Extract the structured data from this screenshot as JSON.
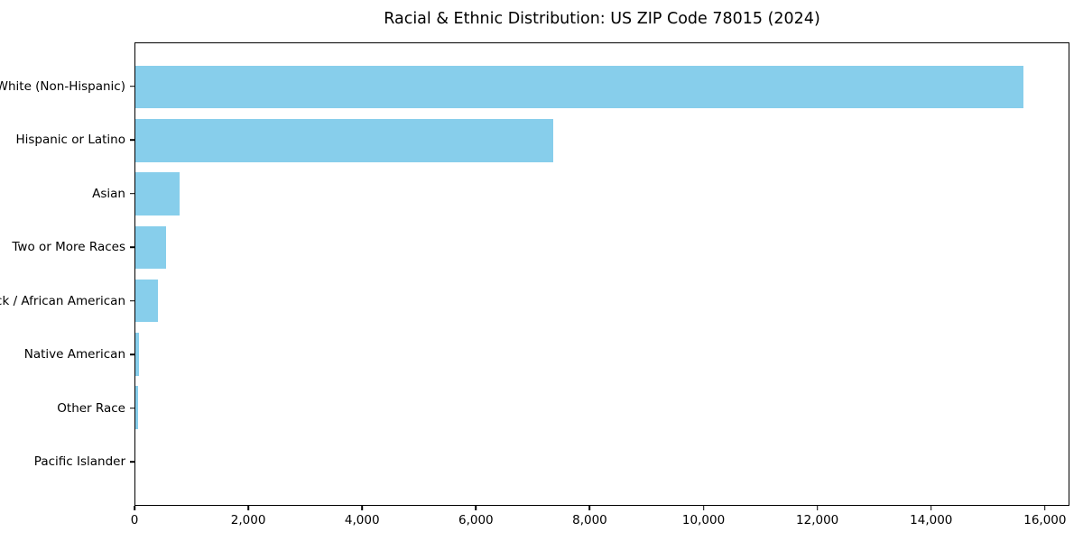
{
  "title": "Racial & Ethnic Distribution: US ZIP Code 78015 (2024)",
  "colors": {
    "bar": "#87CEEB",
    "axis": "#000000",
    "background": "#FFFFFF",
    "text": "#000000"
  },
  "chart_data": {
    "type": "bar",
    "orientation": "horizontal",
    "title": "Racial & Ethnic Distribution: US ZIP Code 78015 (2024)",
    "categories": [
      "White (Non-Hispanic)",
      "Hispanic or Latino",
      "Asian",
      "Two or More Races",
      "Black / African American",
      "Native American",
      "Other Race",
      "Pacific Islander"
    ],
    "values": [
      15640,
      7360,
      780,
      540,
      400,
      65,
      55,
      0
    ],
    "xlabel": "",
    "ylabel": "",
    "xlim": [
      0,
      16430
    ],
    "xticks": [
      0,
      2000,
      4000,
      6000,
      8000,
      10000,
      12000,
      14000,
      16000
    ],
    "xtick_labels": [
      "0",
      "2,000",
      "4,000",
      "6,000",
      "8,000",
      "10,000",
      "12,000",
      "14,000",
      "16,000"
    ],
    "bar_color": "#87CEEB",
    "grid": false,
    "legend": null
  }
}
